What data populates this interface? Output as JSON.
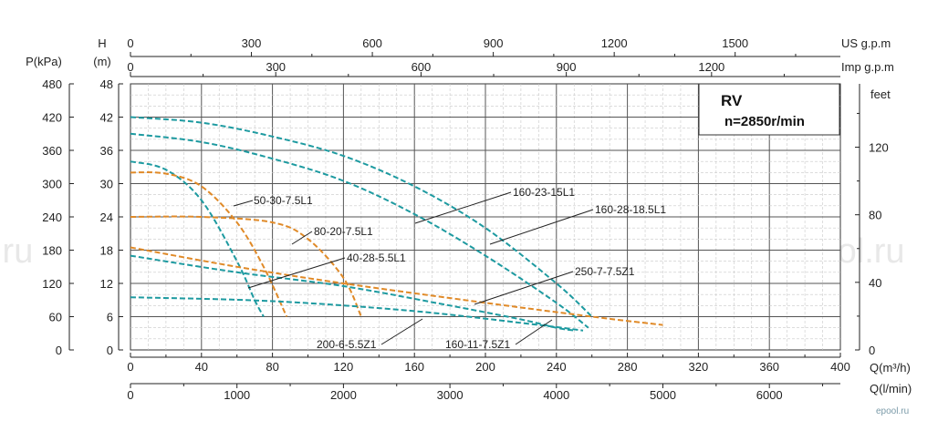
{
  "chart_data": {
    "type": "line",
    "title": "RV",
    "subtitle": "n=2850r/min",
    "watermark": [
      "ePool.ru",
      "ePool.ru",
      "ePool.ru",
      "ePool.ru",
      ".ru"
    ],
    "corner_mark": "epool.ru",
    "axes": {
      "x_bottom_1": {
        "label": "Q(m³/h)",
        "range": [
          0,
          400
        ],
        "ticks": [
          "0",
          "40",
          "80",
          "120",
          "160",
          "200",
          "240",
          "280",
          "320",
          "360",
          "400"
        ]
      },
      "x_bottom_2": {
        "label": "Q(l/min)",
        "range": [
          0,
          6666.7
        ],
        "ticks": [
          "0",
          "1000",
          "2000",
          "3000",
          "4000",
          "5000",
          "6000"
        ]
      },
      "x_top_1": {
        "label": "US g.p.m",
        "range": [
          0,
          1761
        ],
        "ticks": [
          "0",
          "300",
          "600",
          "900",
          "1200",
          "1500"
        ]
      },
      "x_top_2": {
        "label": "Imp g.p.m",
        "range": [
          0,
          1466
        ],
        "ticks": [
          "0",
          "300",
          "600",
          "900",
          "1200"
        ]
      },
      "y_left_head": {
        "label": "H",
        "unit": "(m)",
        "range": [
          0,
          48
        ],
        "ticks": [
          "0",
          "6",
          "12",
          "18",
          "24",
          "30",
          "36",
          "42",
          "48"
        ]
      },
      "y_left_pressure": {
        "label": "P(kPa)",
        "range": [
          0,
          480
        ],
        "ticks": [
          "0",
          "60",
          "120",
          "180",
          "240",
          "300",
          "360",
          "420",
          "480"
        ]
      },
      "y_right_feet": {
        "label": "feet",
        "range": [
          0,
          157.5
        ],
        "ticks": [
          "0",
          "40",
          "80",
          "120"
        ]
      }
    },
    "grid": true,
    "legend": "inline labels",
    "colors": {
      "teal": "#1d9aa0",
      "orange": "#e08a28"
    },
    "series": [
      {
        "name": "160-23-15L1",
        "color": "teal",
        "x": [
          0,
          40,
          80,
          120,
          160,
          200,
          240,
          260
        ],
        "y": [
          42,
          41,
          38.5,
          35,
          29.5,
          22,
          12,
          6
        ]
      },
      {
        "name": "160-28-18.5L1",
        "color": "teal",
        "x": [
          0,
          40,
          80,
          120,
          160,
          200,
          240,
          258
        ],
        "y": [
          39,
          37.5,
          34.5,
          30.5,
          24.5,
          17,
          8.5,
          4
        ]
      },
      {
        "name": "50-30-7.5L1",
        "color": "teal",
        "x": [
          0,
          20,
          40,
          60,
          70,
          75
        ],
        "y": [
          34,
          32.5,
          27,
          16,
          9,
          6
        ]
      },
      {
        "name": "50-30-7.5L1",
        "color": "orange",
        "x": [
          0,
          20,
          40,
          60,
          75,
          88
        ],
        "y": [
          32,
          31.8,
          29.5,
          23,
          15,
          6
        ]
      },
      {
        "name": "80-20-7.5L1",
        "color": "orange",
        "x": [
          0,
          40,
          80,
          100,
          120,
          130
        ],
        "y": [
          24,
          24,
          23,
          20,
          13,
          6
        ]
      },
      {
        "name": "40-28-5.5L1",
        "color": "orange",
        "x": [
          0,
          60,
          120,
          200,
          260,
          300
        ],
        "y": [
          18.5,
          15,
          12,
          8.5,
          6,
          4.5
        ]
      },
      {
        "name": "250-7-7.5Z1",
        "color": "teal",
        "x": [
          0,
          60,
          120,
          180,
          220,
          240,
          250
        ],
        "y": [
          17,
          14,
          11.5,
          8,
          5.5,
          4,
          3.5
        ]
      },
      {
        "name": "200-6-5.5Z1",
        "color": "teal",
        "x": [
          0,
          80,
          160,
          230,
          255
        ],
        "y": [
          9.5,
          8.8,
          7,
          4.5,
          3.5
        ]
      }
    ],
    "labels": [
      "160-23-15L1",
      "160-28-18.5L1",
      "50-30-7.5L1",
      "80-20-7.5L1",
      "40-28-5.5L1",
      "250-7-7.5Z1",
      "200-6-5.5Z1",
      "160-11-7.5Z1"
    ]
  }
}
